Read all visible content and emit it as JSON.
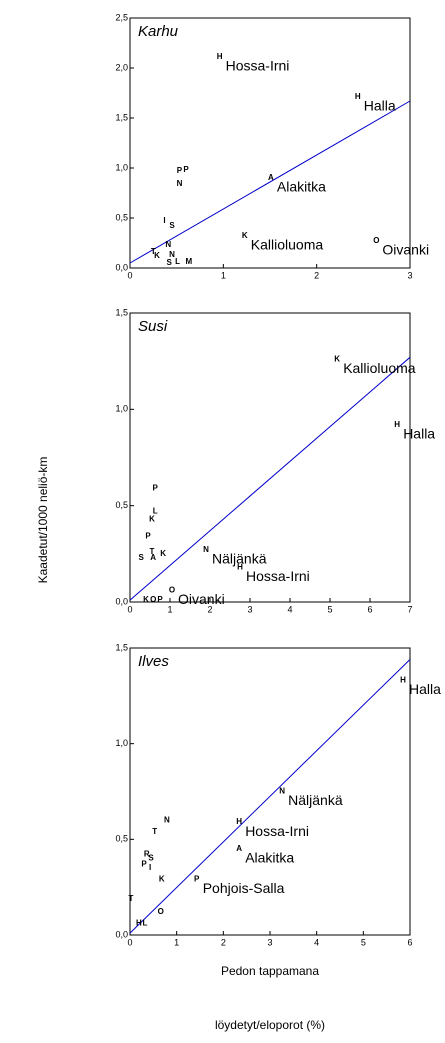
{
  "y_label": "Kaadetut/1000 neliö-km",
  "x_label_lines": [
    "Pedon tappamana",
    "löydetyt/eloporot (%)"
  ],
  "chart_data": [
    {
      "type": "scatter",
      "title": "Karhu",
      "xlim": [
        0,
        3
      ],
      "xticks": [
        0,
        1,
        2,
        3
      ],
      "ylim": [
        0,
        2.5
      ],
      "yticks": [
        {
          "value": 0,
          "label": "0,0"
        },
        {
          "value": 0.5,
          "label": "0,5"
        },
        {
          "value": 1,
          "label": "1,0"
        },
        {
          "value": 1.5,
          "label": "1,5"
        },
        {
          "value": 2,
          "label": "2,0"
        },
        {
          "value": 2.5,
          "label": "2,5"
        }
      ],
      "trend": {
        "x": [
          0,
          3
        ],
        "y": [
          0.05,
          1.67
        ],
        "color": "#0000cc"
      },
      "points": [
        {
          "x": 0.96,
          "y": 2.11,
          "marker": "H",
          "note": "Hossa-Irni"
        },
        {
          "x": 2.44,
          "y": 1.71,
          "marker": "H",
          "note": "Halla"
        },
        {
          "x": 1.51,
          "y": 0.9,
          "marker": "A",
          "note": "Alakitka"
        },
        {
          "x": 1.23,
          "y": 0.32,
          "marker": "K",
          "note": "Kallioluoma"
        },
        {
          "x": 2.64,
          "y": 0.27,
          "marker": "O",
          "note": "Oivanki"
        },
        {
          "x": 0.53,
          "y": 0.97,
          "marker": "P"
        },
        {
          "x": 0.6,
          "y": 0.98,
          "marker": "P"
        },
        {
          "x": 0.53,
          "y": 0.84,
          "marker": "N"
        },
        {
          "x": 0.37,
          "y": 0.47,
          "marker": "I"
        },
        {
          "x": 0.45,
          "y": 0.42,
          "marker": "S"
        },
        {
          "x": 0.25,
          "y": 0.16,
          "marker": "T"
        },
        {
          "x": 0.29,
          "y": 0.12,
          "marker": "K"
        },
        {
          "x": 0.41,
          "y": 0.23,
          "marker": "N"
        },
        {
          "x": 0.45,
          "y": 0.13,
          "marker": "N"
        },
        {
          "x": 0.42,
          "y": 0.05,
          "marker": "S"
        },
        {
          "x": 0.51,
          "y": 0.06,
          "marker": "L"
        },
        {
          "x": 0.63,
          "y": 0.06,
          "marker": "M"
        }
      ]
    },
    {
      "type": "scatter",
      "title": "Susi",
      "xlim": [
        0,
        7
      ],
      "xticks": [
        0,
        1,
        2,
        3,
        4,
        5,
        6,
        7
      ],
      "ylim": [
        0,
        1.5
      ],
      "yticks": [
        {
          "value": 0,
          "label": "0,0"
        },
        {
          "value": 0.5,
          "label": "0,5"
        },
        {
          "value": 1,
          "label": "1,0"
        },
        {
          "value": 1.5,
          "label": "1,5"
        }
      ],
      "trend": {
        "x": [
          0,
          7
        ],
        "y": [
          0.01,
          1.27
        ],
        "color": "#0000cc"
      },
      "points": [
        {
          "x": 5.18,
          "y": 1.26,
          "marker": "K",
          "note": "Kallioluoma"
        },
        {
          "x": 6.68,
          "y": 0.92,
          "marker": "H",
          "note": "Halla"
        },
        {
          "x": 1.9,
          "y": 0.27,
          "marker": "N",
          "note": "Näljänkä"
        },
        {
          "x": 2.75,
          "y": 0.18,
          "marker": "H",
          "note": "Hossa-Irni"
        },
        {
          "x": 1.05,
          "y": 0.06,
          "marker": "O",
          "note": "Oivanki"
        },
        {
          "x": 0.63,
          "y": 0.59,
          "marker": "P"
        },
        {
          "x": 0.63,
          "y": 0.47,
          "marker": "L"
        },
        {
          "x": 0.55,
          "y": 0.43,
          "marker": "K"
        },
        {
          "x": 0.45,
          "y": 0.34,
          "marker": "P"
        },
        {
          "x": 0.55,
          "y": 0.26,
          "marker": "T"
        },
        {
          "x": 0.58,
          "y": 0.23,
          "marker": "A"
        },
        {
          "x": 0.83,
          "y": 0.25,
          "marker": "K"
        },
        {
          "x": 0.28,
          "y": 0.23,
          "marker": "S"
        },
        {
          "x": 0.4,
          "y": 0.01,
          "marker": "K"
        },
        {
          "x": 0.58,
          "y": 0.01,
          "marker": "O"
        },
        {
          "x": 0.75,
          "y": 0.01,
          "marker": "P"
        }
      ]
    },
    {
      "type": "scatter",
      "title": "Ilves",
      "xlim": [
        0,
        6
      ],
      "xticks": [
        0,
        1,
        2,
        3,
        4,
        5,
        6
      ],
      "ylim": [
        0,
        1.5
      ],
      "yticks": [
        {
          "value": 0,
          "label": "0,0"
        },
        {
          "value": 0.5,
          "label": "0,5"
        },
        {
          "value": 1,
          "label": "1,0"
        },
        {
          "value": 1.5,
          "label": "1,5"
        }
      ],
      "trend": {
        "x": [
          0,
          6
        ],
        "y": [
          0.01,
          1.44
        ],
        "color": "#0000cc"
      },
      "points": [
        {
          "x": 5.85,
          "y": 1.33,
          "marker": "H",
          "note": "Halla"
        },
        {
          "x": 3.26,
          "y": 0.75,
          "marker": "N",
          "note": "Näljänkä"
        },
        {
          "x": 2.34,
          "y": 0.59,
          "marker": "H",
          "note": "Hossa-Irni"
        },
        {
          "x": 2.34,
          "y": 0.45,
          "marker": "A",
          "note": "Alakitka"
        },
        {
          "x": 1.43,
          "y": 0.29,
          "marker": "P",
          "note": "Pohjois-Salla"
        },
        {
          "x": 0.79,
          "y": 0.6,
          "marker": "N"
        },
        {
          "x": 0.53,
          "y": 0.54,
          "marker": "T"
        },
        {
          "x": 0.36,
          "y": 0.42,
          "marker": "R"
        },
        {
          "x": 0.45,
          "y": 0.4,
          "marker": "S"
        },
        {
          "x": 0.3,
          "y": 0.37,
          "marker": "P"
        },
        {
          "x": 0.43,
          "y": 0.35,
          "marker": "I"
        },
        {
          "x": 0.68,
          "y": 0.29,
          "marker": "K"
        },
        {
          "x": 0.66,
          "y": 0.12,
          "marker": "O"
        },
        {
          "x": 0.02,
          "y": 0.19,
          "marker": "T"
        },
        {
          "x": 0.19,
          "y": 0.06,
          "marker": "H"
        },
        {
          "x": 0.32,
          "y": 0.06,
          "marker": "L"
        }
      ]
    }
  ]
}
